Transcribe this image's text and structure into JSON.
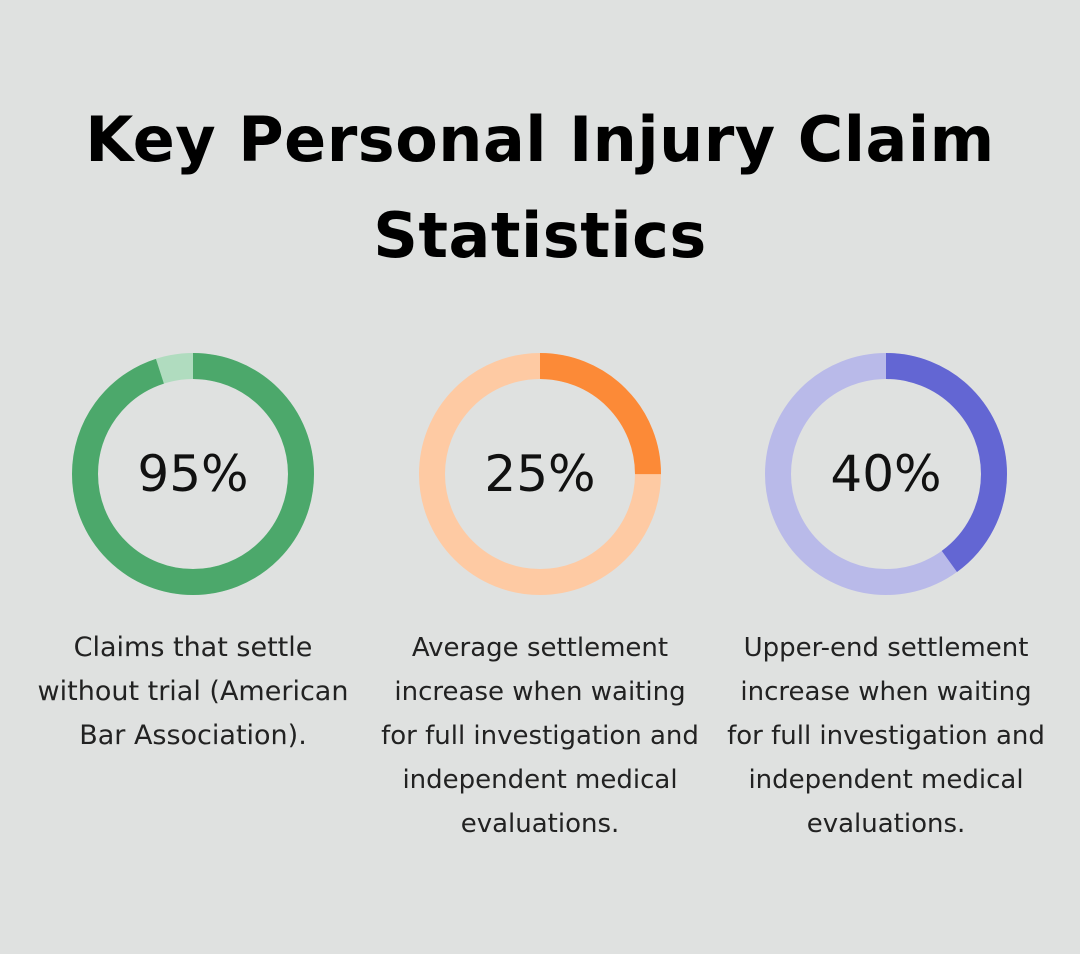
{
  "title": "Key Personal Injury Claim Statistics",
  "chart_data": [
    {
      "type": "pie",
      "value": 95,
      "label": "95%",
      "caption": "Claims that settle without trial (American Bar Association).",
      "colors": {
        "fill": "#4ca86b",
        "track": "#b0dcbf"
      }
    },
    {
      "type": "pie",
      "value": 25,
      "label": "25%",
      "caption": "Average settlement increase when waiting for full investigation and independent medical evaluations.",
      "colors": {
        "fill": "#fc8a37",
        "track": "#fecaa3"
      }
    },
    {
      "type": "pie",
      "value": 40,
      "label": "40%",
      "caption": "Upper-end settlement increase when waiting for full investigation and independent medical evaluations.",
      "colors": {
        "fill": "#6366d3",
        "track": "#b9bae9"
      }
    }
  ]
}
